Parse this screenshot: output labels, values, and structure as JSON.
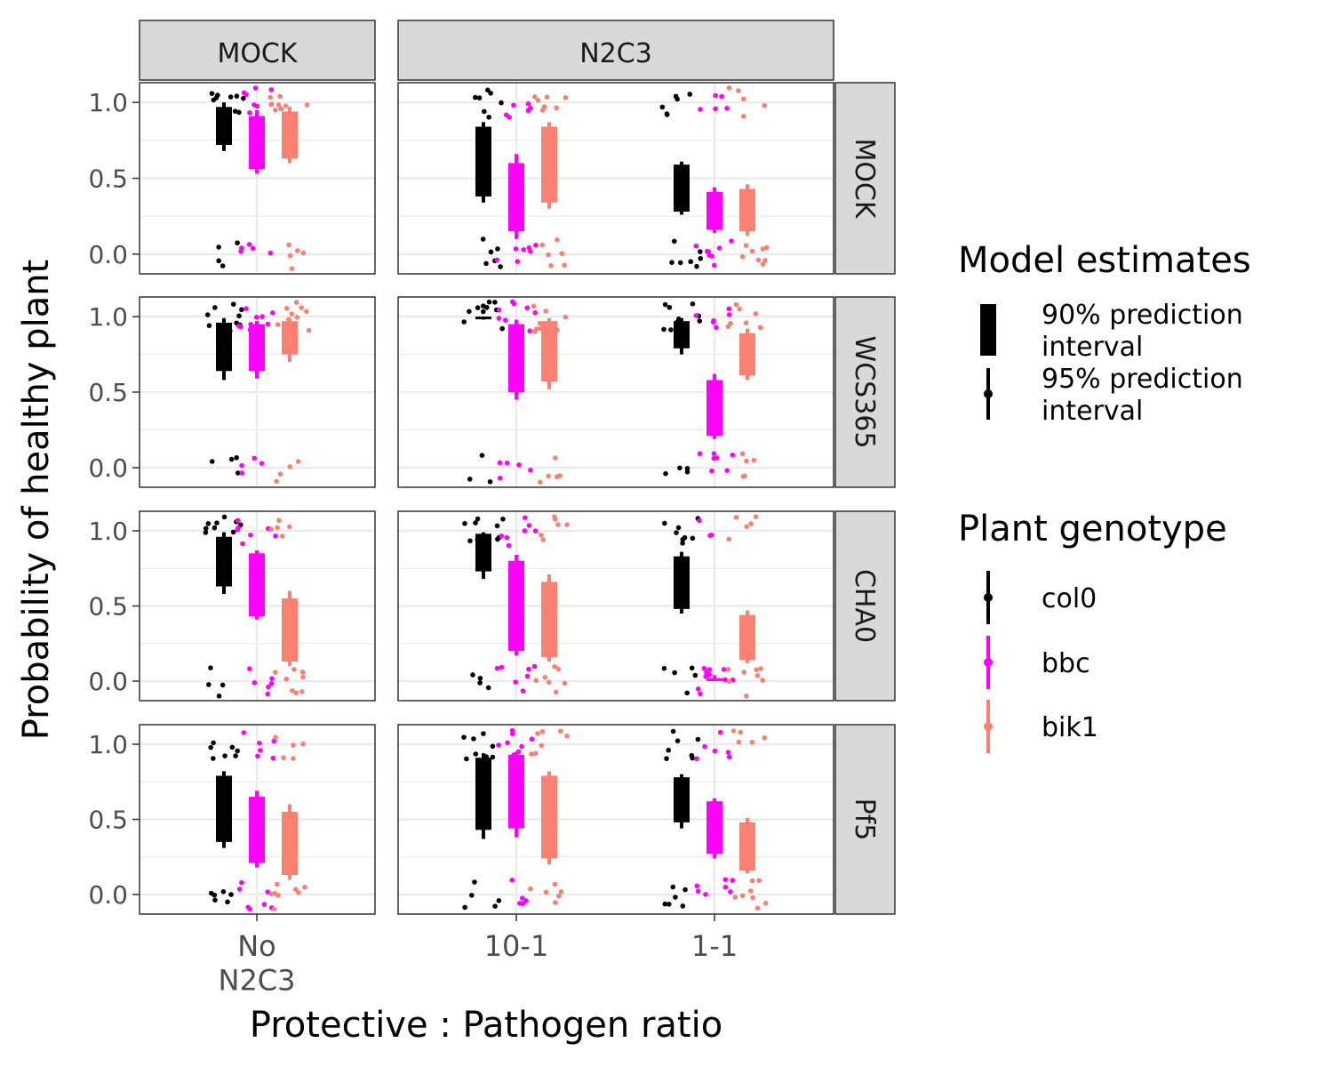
{
  "colors": {
    "col0": "#000000",
    "bbc": "#FF00FF",
    "bik1": "#FA8072",
    "strip_fill": "#D9D9D9",
    "grid_major": "#EBEBEB",
    "panel_border": "#333333",
    "axis_text": "#4D4D4D"
  },
  "chart_data": {
    "type": "scatter",
    "xlabel": "Protective : Pathogen ratio",
    "ylabel": "Probability of healthy plant",
    "ylim": [
      -0.13,
      1.13
    ],
    "yticks": [
      "0.0",
      "0.5",
      "1.0"
    ],
    "grid": true,
    "legend_position": "right",
    "facet_cols": [
      {
        "label": "MOCK",
        "xticks": [
          "No\nN2C3"
        ]
      },
      {
        "label": "N2C3",
        "xticks": [
          "10-1",
          "1-1"
        ]
      }
    ],
    "facet_rows": [
      "MOCK",
      "WCS365",
      "CHA0",
      "Pf5"
    ],
    "legend": {
      "model": {
        "title": "Model estimates",
        "items": [
          "90% prediction\ninterval",
          "95% prediction\ninterval"
        ]
      },
      "genotype": {
        "title": "Plant genotype",
        "items": [
          "col0",
          "bbc",
          "bik1"
        ]
      }
    },
    "genotypes": [
      "col0",
      "bbc",
      "bik1"
    ],
    "intervals": [
      {
        "row": "MOCK",
        "col": "MOCK",
        "x": "No\nN2C3",
        "values": {
          "col0": [
            0.68,
            0.72,
            0.97,
            1.0
          ],
          "bbc": [
            0.53,
            0.56,
            0.91,
            0.95
          ],
          "bik1": [
            0.6,
            0.63,
            0.94,
            0.97
          ]
        }
      },
      {
        "row": "MOCK",
        "col": "N2C3",
        "x": "10-1",
        "values": {
          "col0": [
            0.34,
            0.38,
            0.84,
            0.87
          ],
          "bbc": [
            0.1,
            0.15,
            0.6,
            0.66
          ],
          "bik1": [
            0.3,
            0.34,
            0.84,
            0.87
          ]
        }
      },
      {
        "row": "MOCK",
        "col": "N2C3",
        "x": "1-1",
        "values": {
          "col0": [
            0.26,
            0.28,
            0.59,
            0.61
          ],
          "bbc": [
            0.14,
            0.16,
            0.41,
            0.44
          ],
          "bik1": [
            0.12,
            0.15,
            0.43,
            0.46
          ]
        }
      },
      {
        "row": "WCS365",
        "col": "MOCK",
        "x": "No\nN2C3",
        "values": {
          "col0": [
            0.58,
            0.64,
            0.96,
            0.99
          ],
          "bbc": [
            0.59,
            0.64,
            0.95,
            0.97
          ],
          "bik1": [
            0.7,
            0.75,
            0.97,
            0.99
          ]
        }
      },
      {
        "row": "WCS365",
        "col": "N2C3",
        "x": "10-1",
        "values": {
          "col0": [
            0.98,
            0.99,
            1.0,
            1.0
          ],
          "bbc": [
            0.45,
            0.5,
            0.95,
            0.98
          ],
          "bik1": [
            0.52,
            0.57,
            0.97,
            0.99
          ]
        }
      },
      {
        "row": "WCS365",
        "col": "N2C3",
        "x": "1-1",
        "values": {
          "col0": [
            0.75,
            0.79,
            0.97,
            0.99
          ],
          "bbc": [
            0.19,
            0.21,
            0.58,
            0.62
          ],
          "bik1": [
            0.58,
            0.61,
            0.89,
            0.92
          ]
        }
      },
      {
        "row": "CHA0",
        "col": "MOCK",
        "x": "No\nN2C3",
        "values": {
          "col0": [
            0.58,
            0.63,
            0.96,
            0.99
          ],
          "bbc": [
            0.41,
            0.43,
            0.85,
            0.87
          ],
          "bik1": [
            0.1,
            0.13,
            0.55,
            0.6
          ]
        }
      },
      {
        "row": "CHA0",
        "col": "N2C3",
        "x": "10-1",
        "values": {
          "col0": [
            0.68,
            0.73,
            0.98,
            0.99
          ],
          "bbc": [
            0.17,
            0.2,
            0.8,
            0.84
          ],
          "bik1": [
            0.13,
            0.16,
            0.66,
            0.71
          ]
        }
      },
      {
        "row": "CHA0",
        "col": "N2C3",
        "x": "1-1",
        "values": {
          "col0": [
            0.45,
            0.48,
            0.83,
            0.86
          ],
          "bbc": [
            0.0,
            0.0,
            0.02,
            0.04
          ],
          "bik1": [
            0.12,
            0.14,
            0.44,
            0.47
          ]
        }
      },
      {
        "row": "Pf5",
        "col": "MOCK",
        "x": "No\nN2C3",
        "values": {
          "col0": [
            0.31,
            0.35,
            0.79,
            0.82
          ],
          "bbc": [
            0.18,
            0.21,
            0.65,
            0.69
          ],
          "bik1": [
            0.1,
            0.13,
            0.55,
            0.6
          ]
        }
      },
      {
        "row": "Pf5",
        "col": "N2C3",
        "x": "10-1",
        "values": {
          "col0": [
            0.37,
            0.43,
            0.91,
            0.94
          ],
          "bbc": [
            0.38,
            0.44,
            0.93,
            0.95
          ],
          "bik1": [
            0.2,
            0.24,
            0.79,
            0.82
          ]
        }
      },
      {
        "row": "Pf5",
        "col": "N2C3",
        "x": "1-1",
        "values": {
          "col0": [
            0.44,
            0.48,
            0.78,
            0.8
          ],
          "bbc": [
            0.24,
            0.27,
            0.62,
            0.64
          ],
          "bik1": [
            0.14,
            0.16,
            0.48,
            0.51
          ]
        }
      }
    ]
  }
}
